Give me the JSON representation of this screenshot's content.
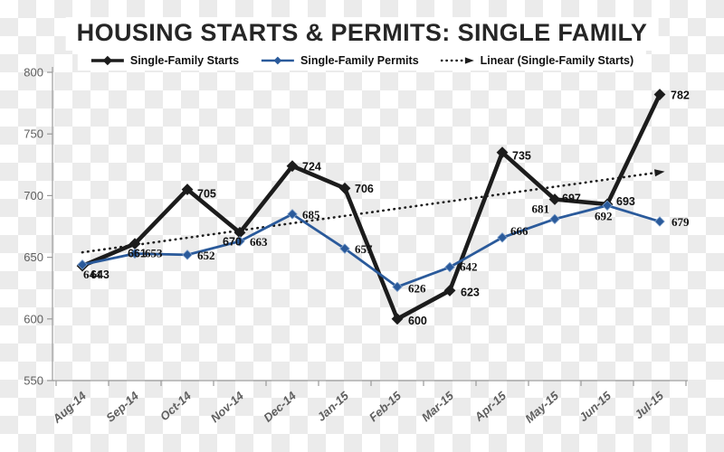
{
  "title": "HOUSING STARTS & PERMITS: SINGLE FAMILY",
  "legend": [
    {
      "label": "Single-Family Starts",
      "color": "#1c1c1c",
      "swatch": "line-diamond"
    },
    {
      "label": "Single-Family Permits",
      "color": "#2a5a9b",
      "swatch": "line-diamond-thin"
    },
    {
      "label": "Linear (Single-Family Starts)",
      "color": "#1c1c1c",
      "swatch": "dotted-arrow"
    }
  ],
  "chart_data": {
    "type": "line",
    "title": "HOUSING STARTS & PERMITS: SINGLE FAMILY",
    "categories": [
      "Aug-14",
      "Sep-14",
      "Oct-14",
      "Nov-14",
      "Dec-14",
      "Jan-15",
      "Feb-15",
      "Mar-15",
      "Apr-15",
      "May-15",
      "Jun-15",
      "Jul-15"
    ],
    "series": [
      {
        "name": "Single-Family Starts",
        "color": "#1c1c1c",
        "marker": "diamond",
        "values": [
          643,
          661,
          705,
          670,
          724,
          706,
          600,
          623,
          735,
          697,
          693,
          782
        ]
      },
      {
        "name": "Single-Family Permits",
        "color": "#2a5a9b",
        "marker": "diamond",
        "values": [
          644,
          653,
          652,
          663,
          685,
          657,
          626,
          642,
          666,
          681,
          692,
          679
        ]
      }
    ],
    "trendline": {
      "name": "Linear (Single-Family Starts)",
      "based_on": "Single-Family Starts",
      "style": "dotted",
      "color": "#1c1c1c",
      "start_value": 654,
      "end_value": 719
    },
    "ylim": [
      550,
      800
    ],
    "yticks": [
      550,
      600,
      650,
      700,
      750,
      800
    ],
    "grid": false,
    "legend_position": "top",
    "data_labels": true,
    "axis_color": "#9a9a9a",
    "tick_label_color": "#5f5f5f"
  }
}
